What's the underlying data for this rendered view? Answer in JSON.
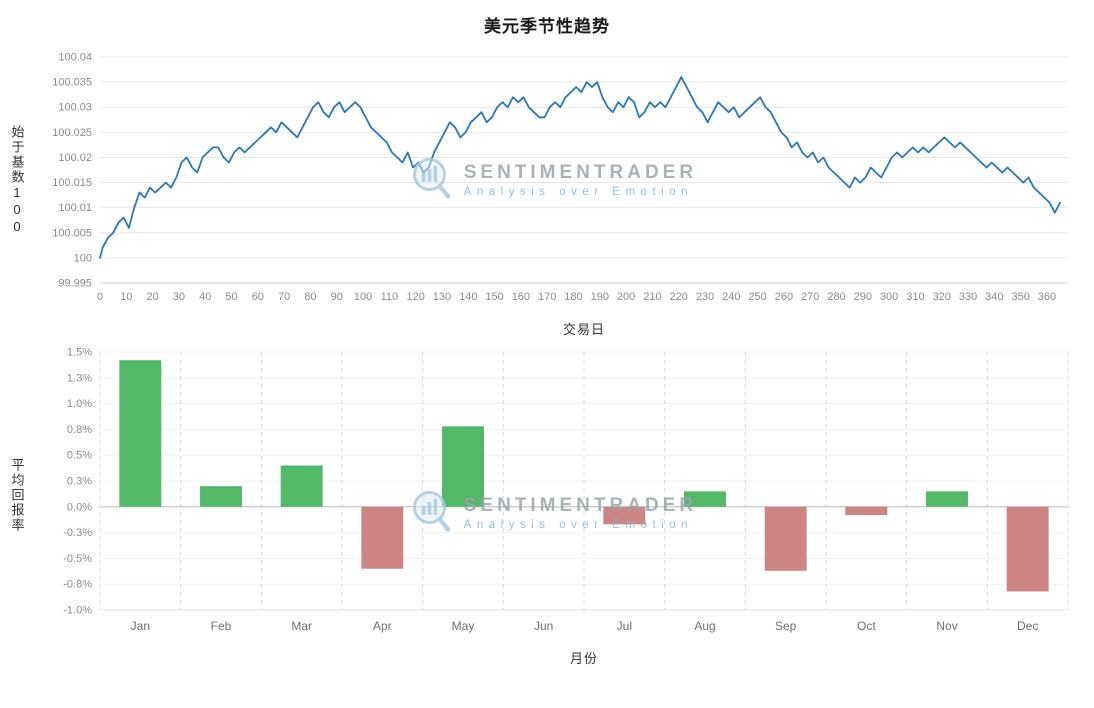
{
  "title": "美元季节性趋势",
  "watermark": {
    "line1": "SENTIMENTRADER",
    "line2": "Analysis over Emotion"
  },
  "chart_data": [
    {
      "type": "line",
      "title": "美元季节性趋势",
      "xlabel": "交易日",
      "ylabel": "始于基数100",
      "color": "#2979b8",
      "grid": "horizontal",
      "xlim": [
        0,
        368
      ],
      "ylim": [
        99.995,
        100.04
      ],
      "xticks": [
        0,
        10,
        20,
        30,
        40,
        50,
        60,
        70,
        80,
        90,
        100,
        110,
        120,
        130,
        140,
        150,
        160,
        170,
        180,
        190,
        200,
        210,
        220,
        230,
        240,
        250,
        260,
        270,
        280,
        290,
        300,
        310,
        320,
        330,
        340,
        350,
        360
      ],
      "yticks": [
        [
          100.04,
          "100.04"
        ],
        [
          100.035,
          "100.035"
        ],
        [
          100.03,
          "100.03"
        ],
        [
          100.025,
          "100.025"
        ],
        [
          100.02,
          "100.02"
        ],
        [
          100.015,
          "100.015"
        ],
        [
          100.01,
          "100.01"
        ],
        [
          100.005,
          "100.005"
        ],
        [
          100,
          "100"
        ],
        [
          99.995,
          "99.995"
        ]
      ],
      "points": [
        [
          0,
          100.0
        ],
        [
          1,
          100.002
        ],
        [
          3,
          100.004
        ],
        [
          5,
          100.005
        ],
        [
          7,
          100.007
        ],
        [
          9,
          100.008
        ],
        [
          11,
          100.006
        ],
        [
          13,
          100.01
        ],
        [
          15,
          100.013
        ],
        [
          17,
          100.012
        ],
        [
          19,
          100.014
        ],
        [
          21,
          100.013
        ],
        [
          23,
          100.014
        ],
        [
          25,
          100.015
        ],
        [
          27,
          100.014
        ],
        [
          29,
          100.016
        ],
        [
          31,
          100.019
        ],
        [
          33,
          100.02
        ],
        [
          35,
          100.018
        ],
        [
          37,
          100.017
        ],
        [
          39,
          100.02
        ],
        [
          41,
          100.021
        ],
        [
          43,
          100.022
        ],
        [
          45,
          100.022
        ],
        [
          47,
          100.02
        ],
        [
          49,
          100.019
        ],
        [
          51,
          100.021
        ],
        [
          53,
          100.022
        ],
        [
          55,
          100.021
        ],
        [
          57,
          100.022
        ],
        [
          59,
          100.023
        ],
        [
          61,
          100.024
        ],
        [
          63,
          100.025
        ],
        [
          65,
          100.026
        ],
        [
          67,
          100.025
        ],
        [
          69,
          100.027
        ],
        [
          71,
          100.026
        ],
        [
          73,
          100.025
        ],
        [
          75,
          100.024
        ],
        [
          77,
          100.026
        ],
        [
          79,
          100.028
        ],
        [
          81,
          100.03
        ],
        [
          83,
          100.031
        ],
        [
          85,
          100.029
        ],
        [
          87,
          100.028
        ],
        [
          89,
          100.03
        ],
        [
          91,
          100.031
        ],
        [
          93,
          100.029
        ],
        [
          95,
          100.03
        ],
        [
          97,
          100.031
        ],
        [
          99,
          100.03
        ],
        [
          101,
          100.028
        ],
        [
          103,
          100.026
        ],
        [
          105,
          100.025
        ],
        [
          107,
          100.024
        ],
        [
          109,
          100.023
        ],
        [
          111,
          100.021
        ],
        [
          113,
          100.02
        ],
        [
          115,
          100.019
        ],
        [
          117,
          100.021
        ],
        [
          119,
          100.018
        ],
        [
          121,
          100.019
        ],
        [
          123,
          100.017
        ],
        [
          125,
          100.018
        ],
        [
          127,
          100.021
        ],
        [
          129,
          100.023
        ],
        [
          131,
          100.025
        ],
        [
          133,
          100.027
        ],
        [
          135,
          100.026
        ],
        [
          137,
          100.024
        ],
        [
          139,
          100.025
        ],
        [
          141,
          100.027
        ],
        [
          143,
          100.028
        ],
        [
          145,
          100.029
        ],
        [
          147,
          100.027
        ],
        [
          149,
          100.028
        ],
        [
          151,
          100.03
        ],
        [
          153,
          100.031
        ],
        [
          155,
          100.03
        ],
        [
          157,
          100.032
        ],
        [
          159,
          100.031
        ],
        [
          161,
          100.032
        ],
        [
          163,
          100.03
        ],
        [
          165,
          100.029
        ],
        [
          167,
          100.028
        ],
        [
          169,
          100.028
        ],
        [
          171,
          100.03
        ],
        [
          173,
          100.031
        ],
        [
          175,
          100.03
        ],
        [
          177,
          100.032
        ],
        [
          179,
          100.033
        ],
        [
          181,
          100.034
        ],
        [
          183,
          100.033
        ],
        [
          185,
          100.035
        ],
        [
          187,
          100.034
        ],
        [
          189,
          100.035
        ],
        [
          191,
          100.032
        ],
        [
          193,
          100.03
        ],
        [
          195,
          100.029
        ],
        [
          197,
          100.031
        ],
        [
          199,
          100.03
        ],
        [
          201,
          100.032
        ],
        [
          203,
          100.031
        ],
        [
          205,
          100.028
        ],
        [
          207,
          100.029
        ],
        [
          209,
          100.031
        ],
        [
          211,
          100.03
        ],
        [
          213,
          100.031
        ],
        [
          215,
          100.03
        ],
        [
          217,
          100.032
        ],
        [
          219,
          100.034
        ],
        [
          221,
          100.036
        ],
        [
          223,
          100.034
        ],
        [
          225,
          100.032
        ],
        [
          227,
          100.03
        ],
        [
          229,
          100.029
        ],
        [
          231,
          100.027
        ],
        [
          233,
          100.029
        ],
        [
          235,
          100.031
        ],
        [
          237,
          100.03
        ],
        [
          239,
          100.029
        ],
        [
          241,
          100.03
        ],
        [
          243,
          100.028
        ],
        [
          245,
          100.029
        ],
        [
          247,
          100.03
        ],
        [
          249,
          100.031
        ],
        [
          251,
          100.032
        ],
        [
          253,
          100.03
        ],
        [
          255,
          100.029
        ],
        [
          257,
          100.027
        ],
        [
          259,
          100.025
        ],
        [
          261,
          100.024
        ],
        [
          263,
          100.022
        ],
        [
          265,
          100.023
        ],
        [
          267,
          100.021
        ],
        [
          269,
          100.02
        ],
        [
          271,
          100.021
        ],
        [
          273,
          100.019
        ],
        [
          275,
          100.02
        ],
        [
          277,
          100.018
        ],
        [
          279,
          100.017
        ],
        [
          281,
          100.016
        ],
        [
          283,
          100.015
        ],
        [
          285,
          100.014
        ],
        [
          287,
          100.016
        ],
        [
          289,
          100.015
        ],
        [
          291,
          100.016
        ],
        [
          293,
          100.018
        ],
        [
          295,
          100.017
        ],
        [
          297,
          100.016
        ],
        [
          299,
          100.018
        ],
        [
          301,
          100.02
        ],
        [
          303,
          100.021
        ],
        [
          305,
          100.02
        ],
        [
          307,
          100.021
        ],
        [
          309,
          100.022
        ],
        [
          311,
          100.021
        ],
        [
          313,
          100.022
        ],
        [
          315,
          100.021
        ],
        [
          317,
          100.022
        ],
        [
          319,
          100.023
        ],
        [
          321,
          100.024
        ],
        [
          323,
          100.023
        ],
        [
          325,
          100.022
        ],
        [
          327,
          100.023
        ],
        [
          329,
          100.022
        ],
        [
          331,
          100.021
        ],
        [
          333,
          100.02
        ],
        [
          335,
          100.019
        ],
        [
          337,
          100.018
        ],
        [
          339,
          100.019
        ],
        [
          341,
          100.018
        ],
        [
          343,
          100.017
        ],
        [
          345,
          100.018
        ],
        [
          347,
          100.017
        ],
        [
          349,
          100.016
        ],
        [
          351,
          100.015
        ],
        [
          353,
          100.016
        ],
        [
          355,
          100.014
        ],
        [
          357,
          100.013
        ],
        [
          359,
          100.012
        ],
        [
          361,
          100.011
        ],
        [
          363,
          100.009
        ],
        [
          365,
          100.011
        ]
      ]
    },
    {
      "type": "bar",
      "xlabel": "月份",
      "ylabel": "平均回报率",
      "ylim": [
        -1.0,
        1.5
      ],
      "grid": "vertical-dashed",
      "yticks": [
        [
          1.5,
          "1.5%"
        ],
        [
          1.25,
          "1.3%"
        ],
        [
          1.0,
          "1.0%"
        ],
        [
          0.75,
          "0.8%"
        ],
        [
          0.5,
          "0.5%"
        ],
        [
          0.25,
          "0.3%"
        ],
        [
          0,
          "0.0%"
        ],
        [
          -0.25,
          "-0.3%"
        ],
        [
          -0.5,
          "-0.5%"
        ],
        [
          -0.75,
          "-0.8%"
        ],
        [
          -1.0,
          "-1.0%"
        ]
      ],
      "categories": [
        "Jan",
        "Feb",
        "Mar",
        "Apr",
        "May",
        "Jun",
        "Jul",
        "Aug",
        "Sep",
        "Oct",
        "Nov",
        "Dec"
      ],
      "values": [
        1.42,
        0.2,
        0.4,
        -0.6,
        0.78,
        0,
        -0.17,
        0.15,
        -0.62,
        -0.08,
        0.15,
        -0.82
      ],
      "positive_color": "#53b867",
      "negative_color": "#cd8484"
    }
  ]
}
